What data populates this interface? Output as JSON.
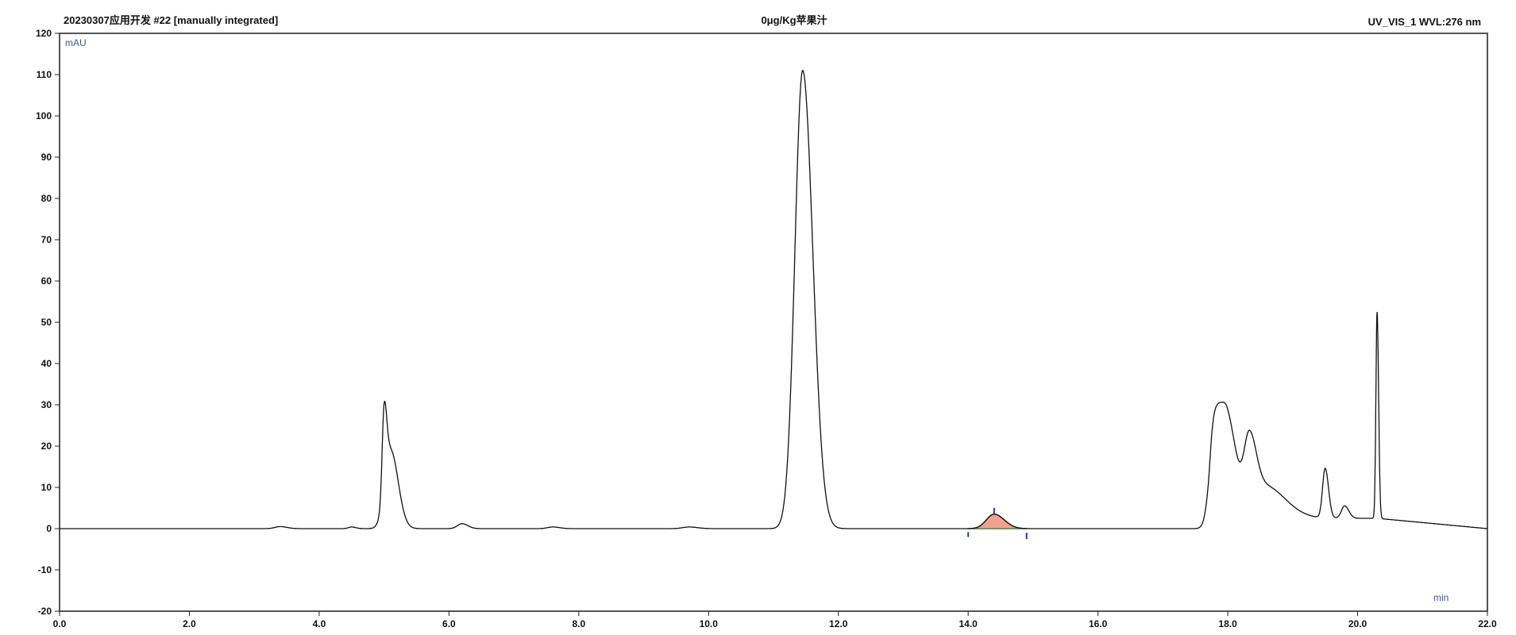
{
  "header": {
    "left": "20230307应用开发 #22 [manually integrated]",
    "center": "0μg/Kg苹果汁",
    "right": "UV_VIS_1 WVL:276 nm"
  },
  "chart_data": {
    "type": "line",
    "xlabel": "min",
    "ylabel": "mAU",
    "xlim": [
      0,
      22
    ],
    "ylim": [
      -20,
      120
    ],
    "xticks": [
      "0.0",
      "2.0",
      "4.0",
      "6.0",
      "8.0",
      "10.0",
      "12.0",
      "14.0",
      "16.0",
      "18.0",
      "20.0",
      "22.0"
    ],
    "yticks": [
      "-20",
      "-10",
      "0",
      "10",
      "20",
      "30",
      "40",
      "50",
      "60",
      "70",
      "80",
      "90",
      "100",
      "110",
      "120"
    ],
    "grid": false,
    "trace_color": "#111111",
    "peaks": [
      {
        "rt": 3.4,
        "height": 0.5,
        "width": 0.08
      },
      {
        "rt": 4.5,
        "height": 0.4,
        "width": 0.05
      },
      {
        "rt": 5.0,
        "height": 20,
        "width": 0.03
      },
      {
        "rt": 5.1,
        "height": 19,
        "width": 0.09
      },
      {
        "rt": 6.2,
        "height": 1.2,
        "width": 0.07
      },
      {
        "rt": 7.6,
        "height": 0.4,
        "width": 0.08
      },
      {
        "rt": 9.7,
        "height": 0.4,
        "width": 0.1
      },
      {
        "rt": 11.45,
        "height": 111,
        "width": 0.12
      },
      {
        "rt": 14.4,
        "height": 3.5,
        "width": 0.12
      },
      {
        "rt": 17.8,
        "height": 23,
        "width": 0.08
      },
      {
        "rt": 18.0,
        "height": 22,
        "width": 0.1
      },
      {
        "rt": 18.33,
        "height": 15,
        "width": 0.08
      },
      {
        "rt": 18.55,
        "height": 8,
        "width": 0.25
      },
      {
        "rt": 19.5,
        "height": 12,
        "width": 0.04
      },
      {
        "rt": 19.8,
        "height": 3,
        "width": 0.05
      },
      {
        "rt": 20.3,
        "height": 50,
        "width": 0.018
      }
    ],
    "integrated_peak": {
      "start": 14.0,
      "apex": 14.4,
      "end": 14.9,
      "fill_color": "#f4a090",
      "edge_color": "#3a8a3a",
      "marker_color": "#2030e0"
    }
  }
}
